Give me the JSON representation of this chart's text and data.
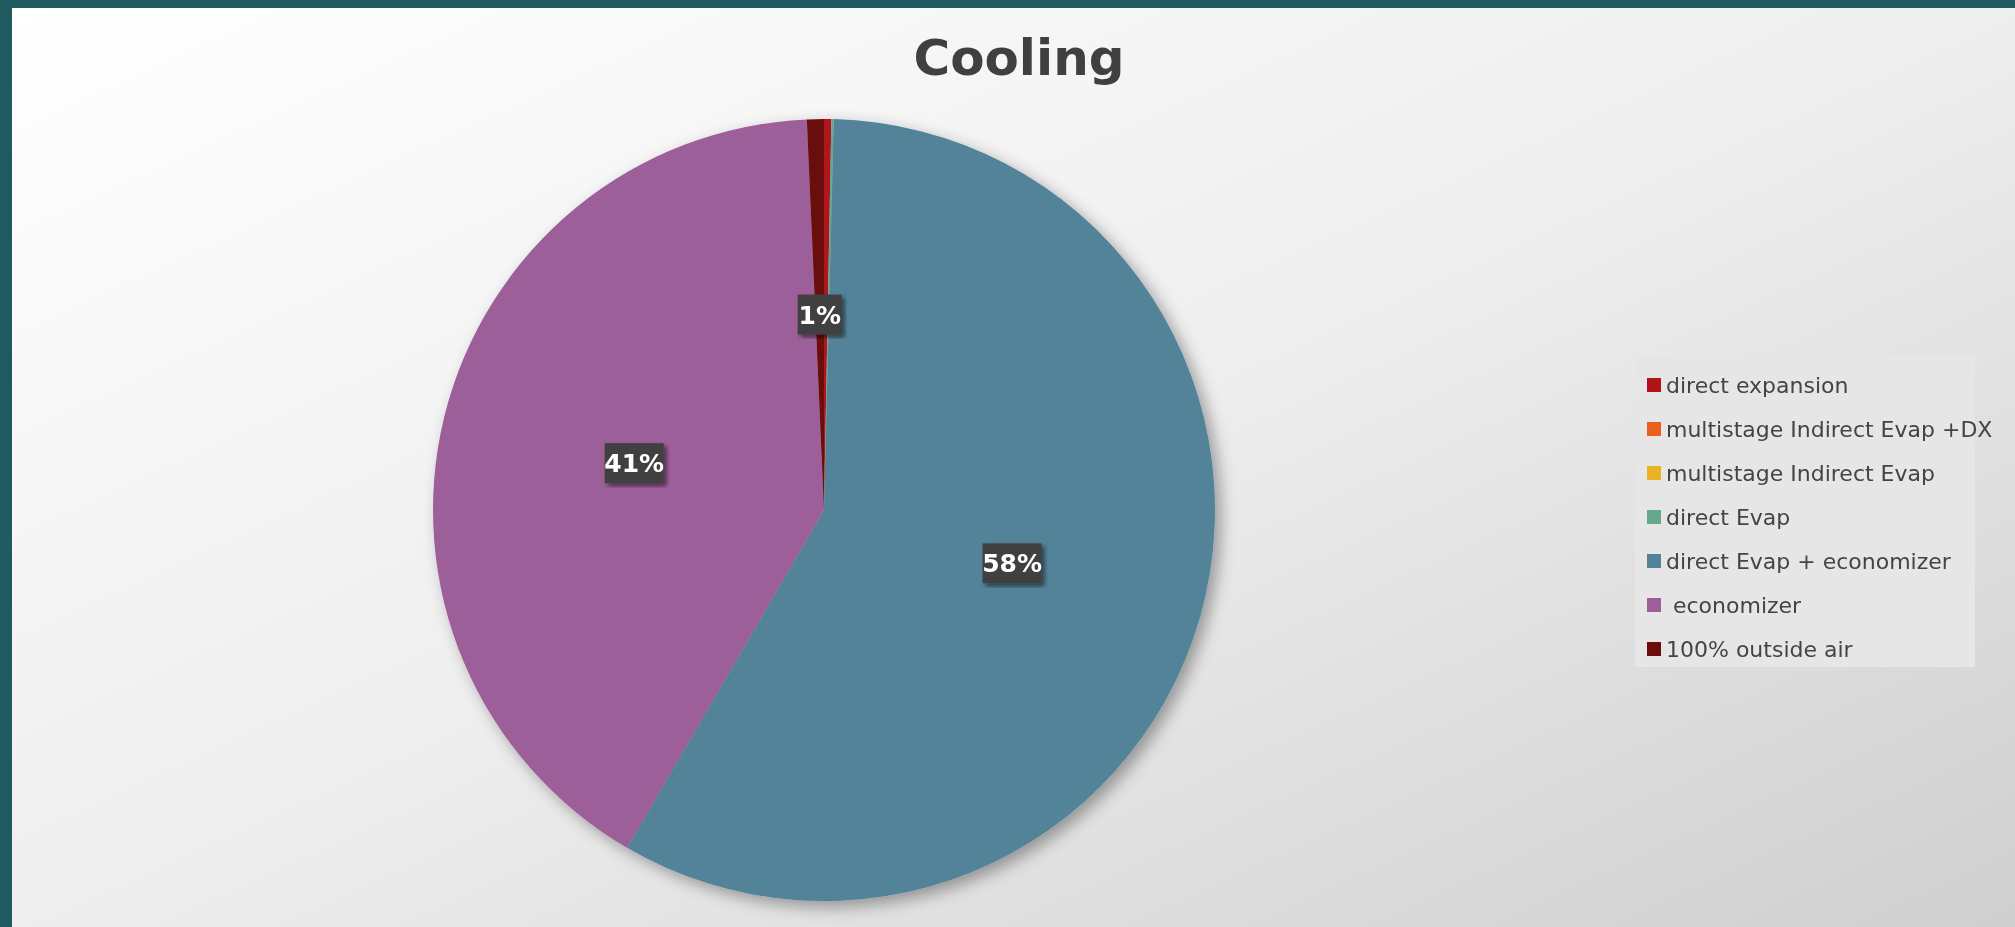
{
  "chart_data": {
    "type": "pie",
    "title": "Cooling",
    "categories": [
      "direct expansion",
      "multistage Indirect Evap +DX",
      "multistage Indirect Evap",
      "direct Evap",
      "direct Evap + economizer",
      " economizer",
      "100% outside air"
    ],
    "values": [
      0.3,
      0,
      0,
      0.1,
      58.0,
      40.9,
      0.7
    ],
    "colors": [
      "#b0141a",
      "#e8601b",
      "#e8b424",
      "#66a88e",
      "#528398",
      "#9d5e99",
      "#6b0d0d"
    ],
    "value_labels": [
      null,
      null,
      null,
      null,
      "58%",
      "41%",
      "1%"
    ],
    "legend": "right"
  }
}
